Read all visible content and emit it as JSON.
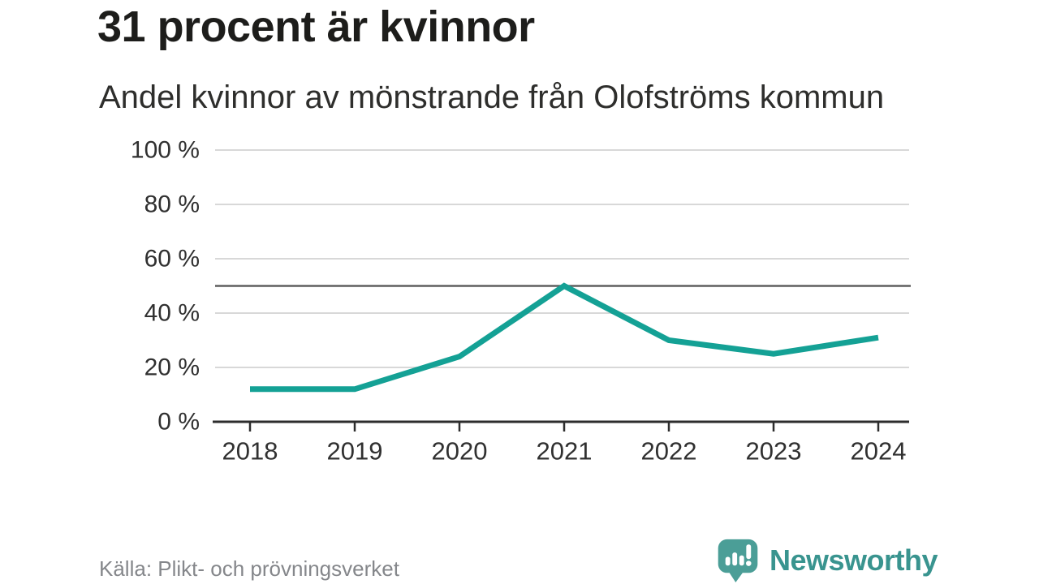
{
  "header": {
    "title": "31 procent är kvinnor",
    "subtitle": "Andel kvinnor av mönstrande från Olofströms kommun"
  },
  "footer": {
    "source": "Källa: Plikt- och prövningsverket",
    "brand": "Newsworthy"
  },
  "colors": {
    "line": "#14a195",
    "grid": "#d8d8d8",
    "reference": "#5f5f5f",
    "axis": "#2d2d2d",
    "tick_text": "#303030",
    "title": "#1d1d1b",
    "source_text": "#85878b",
    "brand_text": "#39948f",
    "brand_icon": "#4b9e97"
  },
  "chart_data": {
    "type": "line",
    "title": "31 procent är kvinnor",
    "subtitle": "Andel kvinnor av mönstrande från Olofströms kommun",
    "source": "Källa: Plikt- och prövningsverket",
    "x": [
      2018,
      2019,
      2020,
      2021,
      2022,
      2023,
      2024
    ],
    "series": [
      {
        "name": "Andel kvinnor av mönstrande",
        "values": [
          12,
          12,
          24,
          50,
          30,
          25,
          31
        ]
      }
    ],
    "ylim": [
      0,
      100
    ],
    "yticks": [
      0,
      20,
      40,
      60,
      80,
      100
    ],
    "ytick_suffix": " %",
    "reference_line": 50,
    "grid": true,
    "legend": "none"
  }
}
